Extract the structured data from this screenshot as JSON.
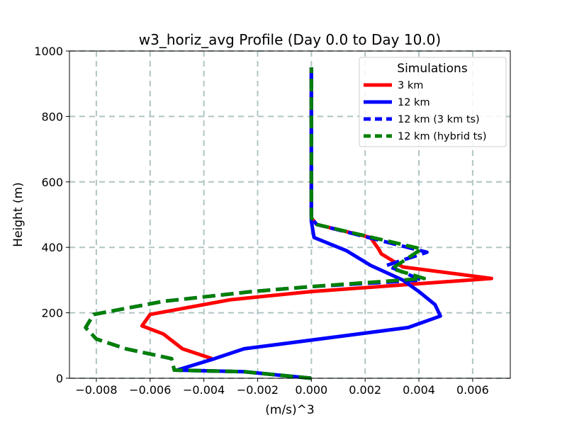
{
  "chart_data": {
    "type": "line",
    "title": "w3_horiz_avg Profile (Day 0.0 to Day 10.0)",
    "xlabel": "(m/s)^3",
    "ylabel": "Height (m)",
    "xlim": [
      -0.009,
      0.0074
    ],
    "ylim": [
      0,
      1000
    ],
    "x_ticks": [
      -0.008,
      -0.006,
      -0.004,
      -0.002,
      0.0,
      0.002,
      0.004,
      0.006
    ],
    "x_tick_labels": [
      "−0.008",
      "−0.006",
      "−0.004",
      "−0.002",
      "0.000",
      "0.002",
      "0.004",
      "0.006"
    ],
    "y_ticks": [
      0,
      200,
      400,
      600,
      800,
      1000
    ],
    "y_tick_labels": [
      "0",
      "200",
      "400",
      "600",
      "800",
      "1000"
    ],
    "grid": true,
    "legend": {
      "title": "Simulations",
      "position": "top-right"
    },
    "series": [
      {
        "name": "3 km",
        "color": "#ff0000",
        "style": "solid",
        "x": [
          -0.0037,
          -0.0048,
          -0.0055,
          -0.0063,
          -0.006,
          -0.003,
          0.0,
          0.0067,
          0.0034,
          0.0026,
          0.0025,
          0.0022,
          0.0002,
          0.0,
          0.0
        ],
        "y": [
          60,
          90,
          135,
          160,
          195,
          240,
          265,
          305,
          340,
          380,
          395,
          430,
          470,
          490,
          950
        ]
      },
      {
        "name": "12 km",
        "color": "#0000ff",
        "style": "solid",
        "x": [
          0.0,
          -0.0025,
          -0.005,
          -0.0036,
          -0.0025,
          0.0036,
          0.0048,
          0.0046,
          0.004,
          0.0034,
          0.0022,
          0.0013,
          0.0001,
          0.0,
          0.0
        ],
        "y": [
          0,
          20,
          25,
          60,
          90,
          155,
          190,
          225,
          265,
          300,
          345,
          390,
          430,
          480,
          950
        ]
      },
      {
        "name": "12 km (3 km ts)",
        "color": "#0000ff",
        "style": "dashed",
        "x": [
          0.0,
          -0.0025,
          -0.0051,
          -0.0052,
          -0.0069,
          -0.008,
          -0.0084,
          -0.0081,
          -0.0055,
          -0.0022,
          0.0,
          0.0041,
          0.0028,
          0.0043,
          0.0002,
          0.0,
          0.0
        ],
        "y": [
          0,
          20,
          25,
          60,
          90,
          120,
          155,
          195,
          235,
          265,
          280,
          300,
          345,
          385,
          470,
          490,
          950
        ]
      },
      {
        "name": "12 km (hybrid ts)",
        "color": "#008000",
        "style": "dashed",
        "x": [
          0.0,
          -0.0025,
          -0.0051,
          -0.0052,
          -0.0069,
          -0.008,
          -0.0084,
          -0.0081,
          -0.0055,
          -0.0022,
          0.0,
          0.0042,
          0.003,
          0.0041,
          0.0002,
          0.0,
          0.0
        ],
        "y": [
          0,
          20,
          25,
          60,
          90,
          120,
          155,
          195,
          235,
          265,
          280,
          305,
          335,
          395,
          470,
          490,
          950
        ]
      }
    ]
  }
}
